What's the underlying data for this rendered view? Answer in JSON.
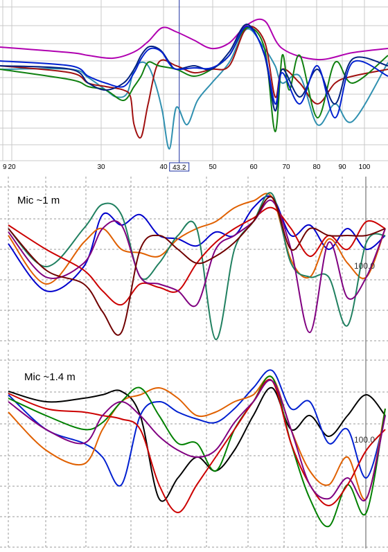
{
  "chart_data": [
    {
      "type": "line",
      "title": "",
      "x_tick_labels": [
        "9",
        "20",
        "30",
        "40",
        "50",
        "60",
        "70",
        "80",
        "90",
        "100"
      ],
      "cursor": {
        "label": "43.2",
        "value": 43.2
      },
      "grid": true,
      "series": [
        {
          "color": "#b000b0",
          "x": [
            0,
            20,
            25,
            32,
            38,
            42,
            46,
            50,
            55,
            60,
            65,
            70,
            75,
            80,
            90,
            100,
            110
          ],
          "y": [
            68,
            76,
            80,
            84,
            75,
            60,
            40,
            46,
            58,
            70,
            62,
            36,
            30,
            70,
            86,
            76,
            70
          ]
        },
        {
          "color": "#3090b0",
          "x": [
            0,
            20,
            25,
            30,
            33,
            36,
            38,
            40,
            42,
            44,
            46,
            48,
            50,
            53,
            56,
            60,
            65,
            70,
            75,
            78,
            80,
            85,
            90,
            95,
            100,
            110
          ],
          "y": [
            100,
            100,
            112,
            130,
            140,
            135,
            100,
            90,
            95,
            120,
            160,
            215,
            155,
            180,
            145,
            120,
            90,
            42,
            70,
            95,
            120,
            110,
            180,
            150,
            175,
            90
          ]
        },
        {
          "color": "#a01010",
          "x": [
            0,
            20,
            25,
            30,
            35,
            37,
            38,
            40,
            42,
            45,
            50,
            55,
            60,
            65,
            70,
            75,
            78,
            80,
            85,
            90,
            95,
            100,
            110
          ],
          "y": [
            95,
            105,
            120,
            125,
            130,
            140,
            180,
            198,
            150,
            90,
            95,
            105,
            100,
            95,
            40,
            60,
            140,
            100,
            120,
            150,
            120,
            110,
            100
          ]
        },
        {
          "color": "#108010",
          "x": [
            0,
            20,
            25,
            30,
            35,
            38,
            40,
            42,
            45,
            50,
            55,
            60,
            65,
            70,
            75,
            78,
            80,
            82,
            85,
            90,
            95,
            100,
            110
          ],
          "y": [
            100,
            115,
            125,
            130,
            145,
            125,
            110,
            90,
            95,
            100,
            110,
            100,
            80,
            40,
            70,
            190,
            80,
            130,
            80,
            170,
            90,
            120,
            80
          ]
        },
        {
          "color": "#002080",
          "x": [
            0,
            20,
            25,
            30,
            35,
            38,
            40,
            42,
            44,
            46,
            48,
            50,
            55,
            60,
            65,
            70,
            75,
            78,
            80,
            85,
            90,
            95,
            100,
            110
          ],
          "y": [
            95,
            100,
            120,
            130,
            120,
            100,
            80,
            68,
            68,
            75,
            90,
            100,
            95,
            100,
            75,
            35,
            80,
            160,
            100,
            140,
            100,
            150,
            85,
            95
          ]
        },
        {
          "color": "#0020d0",
          "x": [
            0,
            20,
            25,
            30,
            35,
            38,
            40,
            42,
            44,
            46,
            48,
            50,
            55,
            60,
            65,
            70,
            75,
            78,
            80,
            85,
            90,
            95,
            100,
            110
          ],
          "y": [
            88,
            95,
            110,
            120,
            125,
            105,
            85,
            72,
            70,
            76,
            92,
            100,
            98,
            98,
            80,
            38,
            78,
            150,
            105,
            150,
            95,
            170,
            90,
            110
          ]
        }
      ]
    },
    {
      "type": "line",
      "title": "Mic ~1 m",
      "annotation": "100.0",
      "grid": true,
      "series": [
        {
          "color": "#0000cc",
          "x": [
            0,
            10,
            20,
            25,
            30,
            35,
            40,
            45,
            50,
            55,
            60,
            65,
            70,
            75,
            80,
            85,
            90,
            95,
            100
          ],
          "y": [
            352,
            420,
            385,
            310,
            325,
            310,
            340,
            345,
            355,
            335,
            340,
            300,
            285,
            340,
            325,
            360,
            330,
            360,
            340
          ]
        },
        {
          "color": "#e06000",
          "x": [
            0,
            10,
            20,
            25,
            30,
            35,
            40,
            45,
            50,
            55,
            60,
            65,
            70,
            75,
            80,
            85,
            90,
            95,
            100
          ],
          "y": [
            340,
            410,
            350,
            330,
            360,
            365,
            370,
            345,
            330,
            320,
            300,
            290,
            285,
            375,
            400,
            345,
            380,
            400,
            330
          ]
        },
        {
          "color": "#208060",
          "x": [
            0,
            10,
            20,
            25,
            30,
            35,
            40,
            45,
            50,
            55,
            60,
            65,
            70,
            75,
            80,
            85,
            90,
            95,
            100
          ],
          "y": [
            330,
            385,
            330,
            295,
            310,
            400,
            380,
            340,
            330,
            490,
            360,
            320,
            280,
            380,
            400,
            400,
            470,
            350,
            340
          ]
        },
        {
          "color": "#cc0000",
          "x": [
            0,
            10,
            20,
            25,
            30,
            35,
            40,
            45,
            50,
            55,
            60,
            65,
            70,
            75,
            80,
            85,
            90,
            95,
            100
          ],
          "y": [
            325,
            360,
            390,
            420,
            440,
            410,
            415,
            420,
            380,
            350,
            330,
            315,
            300,
            330,
            370,
            340,
            360,
            320,
            330
          ]
        },
        {
          "color": "#800080",
          "x": [
            0,
            10,
            20,
            25,
            30,
            35,
            40,
            45,
            50,
            55,
            60,
            65,
            70,
            75,
            80,
            85,
            90,
            95,
            100
          ],
          "y": [
            335,
            400,
            380,
            330,
            325,
            400,
            410,
            420,
            440,
            360,
            340,
            320,
            290,
            360,
            480,
            350,
            430,
            400,
            330
          ]
        },
        {
          "color": "#700000",
          "x": [
            0,
            10,
            20,
            25,
            30,
            35,
            40,
            45,
            50,
            55,
            60,
            65,
            70,
            75,
            80,
            85,
            90,
            95,
            100
          ],
          "y": [
            330,
            390,
            410,
            450,
            480,
            360,
            340,
            360,
            380,
            370,
            350,
            320,
            285,
            360,
            330,
            340,
            340,
            340,
            330
          ]
        }
      ]
    },
    {
      "type": "line",
      "title": "Mic ~1.4 m",
      "annotation": "100.0",
      "grid": true,
      "series": [
        {
          "color": "#000000",
          "x": [
            0,
            10,
            20,
            25,
            30,
            35,
            40,
            45,
            50,
            55,
            60,
            65,
            70,
            75,
            80,
            85,
            90,
            95,
            100
          ],
          "y": [
            565,
            580,
            575,
            570,
            565,
            600,
            720,
            690,
            660,
            680,
            650,
            600,
            560,
            620,
            600,
            630,
            600,
            570,
            600
          ]
        },
        {
          "color": "#0020d0",
          "x": [
            0,
            10,
            20,
            25,
            30,
            35,
            40,
            45,
            50,
            55,
            60,
            65,
            70,
            75,
            80,
            85,
            90,
            95,
            100
          ],
          "y": [
            570,
            620,
            640,
            660,
            700,
            600,
            580,
            595,
            605,
            610,
            590,
            560,
            535,
            590,
            580,
            640,
            620,
            690,
            600
          ]
        },
        {
          "color": "#e06000",
          "x": [
            0,
            10,
            20,
            25,
            30,
            35,
            40,
            45,
            50,
            55,
            60,
            65,
            70,
            75,
            80,
            85,
            90,
            95,
            100
          ],
          "y": [
            595,
            650,
            670,
            620,
            580,
            570,
            560,
            575,
            600,
            595,
            580,
            570,
            545,
            620,
            680,
            700,
            660,
            720,
            590
          ]
        },
        {
          "color": "#008000",
          "x": [
            0,
            10,
            20,
            25,
            30,
            35,
            40,
            45,
            50,
            55,
            60,
            65,
            70,
            75,
            80,
            85,
            90,
            95,
            100
          ],
          "y": [
            575,
            600,
            620,
            610,
            580,
            560,
            600,
            640,
            640,
            680,
            620,
            580,
            545,
            640,
            720,
            760,
            700,
            740,
            590
          ]
        },
        {
          "color": "#cc0000",
          "x": [
            0,
            10,
            20,
            25,
            30,
            35,
            40,
            45,
            50,
            55,
            60,
            65,
            70,
            75,
            80,
            85,
            90,
            95,
            100
          ],
          "y": [
            568,
            590,
            595,
            600,
            605,
            620,
            700,
            740,
            700,
            660,
            620,
            580,
            550,
            640,
            700,
            730,
            700,
            650,
            620
          ]
        },
        {
          "color": "#800080",
          "x": [
            0,
            10,
            20,
            25,
            30,
            35,
            40,
            45,
            50,
            55,
            60,
            65,
            70,
            75,
            80,
            85,
            90,
            95,
            100
          ],
          "y": [
            580,
            620,
            640,
            600,
            580,
            600,
            630,
            650,
            660,
            650,
            610,
            580,
            550,
            620,
            700,
            720,
            690,
            720,
            600
          ]
        }
      ]
    }
  ]
}
